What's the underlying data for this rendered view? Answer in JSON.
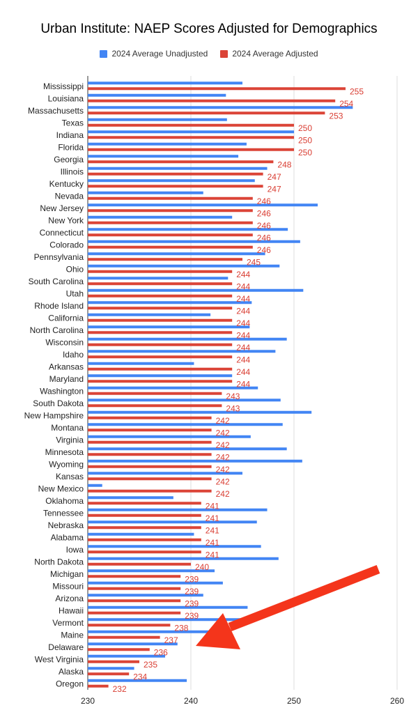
{
  "chart_data": {
    "type": "bar",
    "orientation": "horizontal",
    "title": "Urban Institute: NAEP Scores Adjusted for Demographics",
    "xlim": [
      230,
      260
    ],
    "xticks": [
      230,
      240,
      250,
      260
    ],
    "grid": true,
    "legend_position": "top",
    "categories": [
      "Mississippi",
      "Louisiana",
      "Massachusetts",
      "Texas",
      "Indiana",
      "Florida",
      "Georgia",
      "Illinois",
      "Kentucky",
      "Nevada",
      "New Jersey",
      "New York",
      "Connecticut",
      "Colorado",
      "Pennsylvania",
      "Ohio",
      "South Carolina",
      "Utah",
      "Rhode Island",
      "California",
      "North Carolina",
      "Wisconsin",
      "Idaho",
      "Arkansas",
      "Maryland",
      "Washington",
      "South Dakota",
      "New Hampshire",
      "Montana",
      "Virginia",
      "Minnesota",
      "Wyoming",
      "Kansas",
      "New Mexico",
      "Oklahoma",
      "Tennessee",
      "Nebraska",
      "Alabama",
      "Iowa",
      "North Dakota",
      "Michigan",
      "Missouri",
      "Arizona",
      "Hawaii",
      "Vermont",
      "Maine",
      "Delaware",
      "West Virginia",
      "Alaska",
      "Oregon"
    ],
    "series": [
      {
        "name": "2024 Average Unadjusted",
        "color": "#4285f4",
        "values": [
          245.0,
          243.4,
          255.7,
          243.5,
          250.0,
          245.4,
          244.6,
          247.4,
          246.2,
          241.2,
          252.3,
          244.0,
          249.4,
          250.6,
          247.2,
          248.6,
          243.6,
          250.9,
          245.9,
          241.9,
          245.7,
          249.3,
          248.2,
          240.3,
          244.0,
          246.5,
          248.7,
          251.7,
          248.9,
          245.8,
          249.3,
          250.8,
          245.0,
          231.4,
          238.3,
          247.4,
          246.4,
          240.3,
          246.8,
          248.5,
          242.3,
          243.1,
          241.2,
          245.5,
          245.0,
          243.0,
          238.7,
          237.5,
          234.5,
          239.6
        ]
      },
      {
        "name": "2024 Average Adjusted",
        "color": "#db4437",
        "values": [
          255,
          254,
          253,
          250,
          250,
          250,
          248,
          247,
          247,
          246,
          246,
          246,
          246,
          246,
          245,
          244,
          244,
          244,
          244,
          244,
          244,
          244,
          244,
          244,
          244,
          243,
          243,
          242,
          242,
          242,
          242,
          242,
          242,
          242,
          241,
          241,
          241,
          241,
          241,
          240,
          239,
          239,
          239,
          239,
          238,
          237,
          236,
          235,
          234,
          232
        ]
      }
    ]
  },
  "arrow": {
    "color": "#f4351b"
  }
}
